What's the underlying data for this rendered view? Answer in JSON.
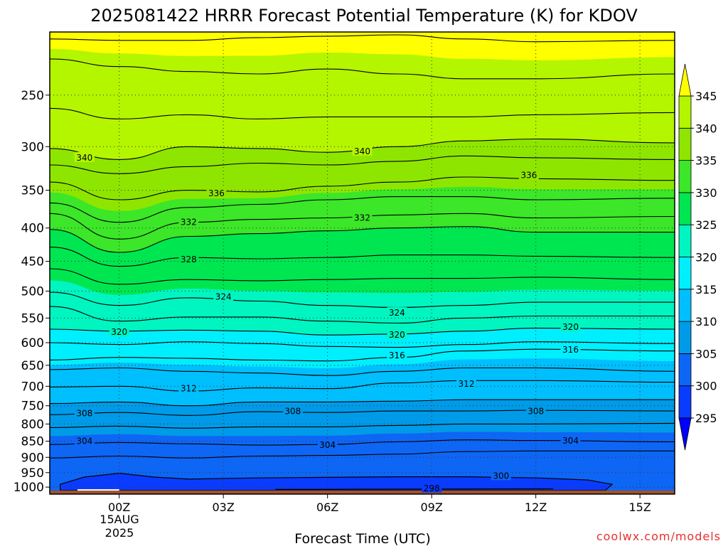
{
  "chart_data": {
    "type": "heatmap",
    "title": "2025081422 HRRR Forecast Potential Temperature (K) for KDOV",
    "xlabel": "Forecast Time (UTC)",
    "ylabel": "",
    "watermark": "coolwx.com/models",
    "x_ticks": [
      {
        "label": "00Z",
        "hour": 0
      },
      {
        "label": "03Z",
        "hour": 3
      },
      {
        "label": "06Z",
        "hour": 6
      },
      {
        "label": "09Z",
        "hour": 9
      },
      {
        "label": "12Z",
        "hour": 12
      },
      {
        "label": "15Z",
        "hour": 15
      }
    ],
    "x_date_label": [
      "15AUG",
      "2025"
    ],
    "xlim": [
      -2,
      16
    ],
    "y_ticks": [
      250,
      300,
      350,
      400,
      450,
      500,
      550,
      600,
      650,
      700,
      750,
      800,
      850,
      900,
      950,
      1000
    ],
    "ylim": [
      200,
      1025
    ],
    "y_scale": "log",
    "y_reversed": true,
    "colorbar": {
      "levels": [
        295,
        300,
        305,
        310,
        315,
        320,
        325,
        330,
        335,
        340,
        345
      ],
      "colors": [
        "#0000ff",
        "#0a3cff",
        "#0e66f5",
        "#009be8",
        "#00bfff",
        "#00efff",
        "#00f5c0",
        "#00e650",
        "#3ce628",
        "#8ee600",
        "#b4f500",
        "#ffff00"
      ],
      "extend": "both"
    },
    "ground_color": "#a0522d",
    "contour_interval": 2,
    "contour_labels": [
      {
        "value": 340,
        "hour": -1.0,
        "p": 312
      },
      {
        "value": 340,
        "hour": 7.0,
        "p": 305
      },
      {
        "value": 336,
        "hour": 2.8,
        "p": 354
      },
      {
        "value": 336,
        "hour": 11.8,
        "p": 332
      },
      {
        "value": 332,
        "hour": 2.0,
        "p": 392
      },
      {
        "value": 332,
        "hour": 7.0,
        "p": 386
      },
      {
        "value": 328,
        "hour": 2.0,
        "p": 447
      },
      {
        "value": 324,
        "hour": 3.0,
        "p": 510
      },
      {
        "value": 324,
        "hour": 8.0,
        "p": 540
      },
      {
        "value": 320,
        "hour": 0.0,
        "p": 578
      },
      {
        "value": 320,
        "hour": 8.0,
        "p": 584
      },
      {
        "value": 320,
        "hour": 13.0,
        "p": 568
      },
      {
        "value": 316,
        "hour": 8.0,
        "p": 628
      },
      {
        "value": 316,
        "hour": 13.0,
        "p": 615
      },
      {
        "value": 312,
        "hour": 2.0,
        "p": 706
      },
      {
        "value": 312,
        "hour": 10.0,
        "p": 694
      },
      {
        "value": 308,
        "hour": -1.0,
        "p": 771
      },
      {
        "value": 308,
        "hour": 5.0,
        "p": 765
      },
      {
        "value": 308,
        "hour": 12.0,
        "p": 765
      },
      {
        "value": 304,
        "hour": -1.0,
        "p": 850
      },
      {
        "value": 304,
        "hour": 6.0,
        "p": 862
      },
      {
        "value": 304,
        "hour": 13.0,
        "p": 849
      },
      {
        "value": 300,
        "hour": 11.0,
        "p": 961
      },
      {
        "value": 298,
        "hour": 9.0,
        "p": 1004
      }
    ],
    "contours": [
      {
        "value": 346,
        "p": [
          205,
          206,
          206,
          204,
          203,
          202,
          205,
          207,
          206
        ]
      },
      {
        "value": 344,
        "p": [
          220,
          226,
          230,
          232,
          228,
          232,
          236,
          236,
          232
        ]
      },
      {
        "value": 342,
        "p": [
          262,
          272,
          268,
          272,
          270,
          270,
          270,
          268,
          266
        ]
      },
      {
        "value": 340,
        "p": [
          302,
          314,
          300,
          302,
          306,
          300,
          294,
          292,
          296
        ]
      },
      {
        "value": 338,
        "p": [
          320,
          330,
          322,
          318,
          320,
          316,
          310,
          312,
          314
        ]
      },
      {
        "value": 336,
        "p": [
          340,
          362,
          350,
          352,
          345,
          340,
          334,
          336,
          338
        ]
      },
      {
        "value": 334,
        "p": [
          366,
          392,
          372,
          368,
          362,
          358,
          358,
          362,
          360
        ]
      },
      {
        "value": 332,
        "p": [
          380,
          416,
          392,
          388,
          386,
          382,
          380,
          386,
          384
        ]
      },
      {
        "value": 330,
        "p": [
          402,
          436,
          412,
          408,
          404,
          400,
          398,
          406,
          406
        ]
      },
      {
        "value": 328,
        "p": [
          428,
          458,
          444,
          446,
          444,
          440,
          440,
          442,
          444
        ]
      },
      {
        "value": 326,
        "p": [
          462,
          488,
          480,
          482,
          480,
          478,
          478,
          476,
          480
        ]
      },
      {
        "value": 324,
        "p": [
          502,
          526,
          512,
          518,
          526,
          530,
          526,
          520,
          520
        ]
      },
      {
        "value": 322,
        "p": [
          528,
          556,
          548,
          548,
          556,
          560,
          550,
          546,
          546
        ]
      },
      {
        "value": 320,
        "p": [
          572,
          576,
          574,
          576,
          584,
          582,
          576,
          570,
          572
        ]
      },
      {
        "value": 318,
        "p": [
          600,
          604,
          598,
          602,
          608,
          610,
          604,
          598,
          602
        ]
      },
      {
        "value": 316,
        "p": [
          638,
          632,
          634,
          638,
          640,
          632,
          618,
          614,
          618
        ]
      },
      {
        "value": 314,
        "p": [
          660,
          656,
          664,
          668,
          674,
          664,
          656,
          656,
          664
        ]
      },
      {
        "value": 312,
        "p": [
          702,
          700,
          712,
          704,
          706,
          692,
          686,
          686,
          690
        ]
      },
      {
        "value": 310,
        "p": [
          744,
          740,
          750,
          740,
          740,
          738,
          734,
          734,
          734
        ]
      },
      {
        "value": 308,
        "p": [
          774,
          768,
          776,
          766,
          768,
          764,
          764,
          762,
          764
        ]
      },
      {
        "value": 306,
        "p": [
          810,
          806,
          812,
          808,
          808,
          804,
          800,
          800,
          798
        ]
      },
      {
        "value": 304,
        "p": [
          860,
          854,
          858,
          862,
          860,
          852,
          846,
          848,
          852
        ]
      },
      {
        "value": 302,
        "p": [
          902,
          896,
          902,
          896,
          894,
          890,
          882,
          880,
          880
        ]
      }
    ],
    "cold_pool_300": {
      "hours": [
        -1.7,
        -1.0,
        0.0,
        1.0,
        2.0,
        4.0,
        6.0,
        8.0,
        10.0,
        12.0,
        13.5,
        14.2,
        14.0,
        12.0,
        8.0,
        4.0,
        1.0,
        -1.7
      ],
      "p": [
        990,
        965,
        952,
        965,
        972,
        968,
        966,
        964,
        964,
        968,
        975,
        990,
        1012,
        1012,
        1012,
        1012,
        1012,
        1012
      ]
    }
  }
}
